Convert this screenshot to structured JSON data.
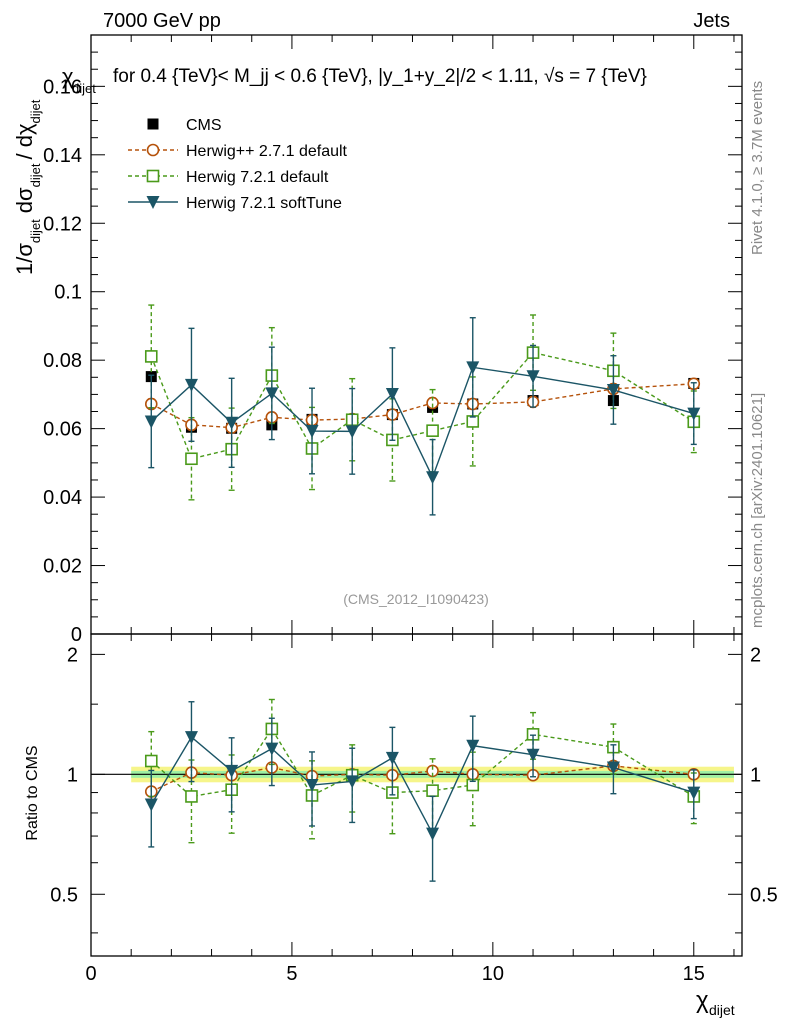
{
  "header": {
    "left": "7000 GeV pp",
    "right": "Jets",
    "side_right": "Rivet 4.1.0, ≥ 3.7M events",
    "side_right2": "mcplots.cern.ch [arXiv:2401.10621]"
  },
  "chart_data": {
    "type": "scatter",
    "title": "for 0.4 {TeV}< M_jj < 0.6 {TeV}, |y_1+y_2|/2 < 1.11, √s = 7 {TeV}",
    "title_prefix": "χ",
    "title_prefix_sub": "dijet",
    "watermark": "(CMS_2012_I1090423)",
    "xlabel": "χ",
    "xlabel_sub": "dijet",
    "ylabel_parts": [
      "1/σ",
      "dijet",
      "dσ",
      "dijet",
      "/ dχ",
      "dijet"
    ],
    "ratio_ylabel": "Ratio to CMS",
    "xlim": [
      0,
      16.2
    ],
    "ylim": [
      0,
      0.175
    ],
    "ratio_ylim": [
      0.35,
      2.25
    ],
    "x_ticks": [
      0,
      5,
      10,
      15
    ],
    "x_tick_labels": [
      "0",
      "5",
      "10",
      "15"
    ],
    "y_ticks": [
      0,
      0.02,
      0.04,
      0.06,
      0.08,
      0.1,
      0.12,
      0.14,
      0.16
    ],
    "y_tick_labels": [
      "0",
      "0.02",
      "0.04",
      "0.06",
      "0.08",
      "0.1",
      "0.12",
      "0.14",
      "0.16"
    ],
    "ratio_ticks": [
      0.5,
      1,
      2
    ],
    "ratio_tick_labels": [
      "0.5",
      "1",
      "2"
    ],
    "x_edges": [
      1,
      2,
      3,
      4,
      5,
      6,
      7,
      8,
      9,
      10,
      12,
      14,
      16
    ],
    "x": [
      1.5,
      2.5,
      3.5,
      4.5,
      5.5,
      6.5,
      7.5,
      8.5,
      9.5,
      11,
      13,
      15
    ],
    "band_inner": 0.02,
    "band_outer": 0.045,
    "series": [
      {
        "name": "CMS",
        "marker": "square-filled",
        "color": "#000000",
        "line": "none",
        "values": [
          0.0752,
          0.0604,
          0.0601,
          0.0611,
          0.0627,
          0.0622,
          0.0641,
          0.0662,
          0.0672,
          0.0682,
          0.0682,
          0.0732
        ],
        "errors": [
          0.001,
          0.001,
          0.001,
          0.001,
          0.001,
          0.001,
          0.001,
          0.001,
          0.001,
          0.001,
          0.001,
          0.001
        ]
      },
      {
        "name": "Herwig++ 2.7.1 default",
        "marker": "circle-open",
        "color": "#b5520b",
        "line": "dashed",
        "values": [
          0.0672,
          0.0611,
          0.0603,
          0.0633,
          0.0625,
          0.0628,
          0.0641,
          0.0675,
          0.0672,
          0.0678,
          0.0716,
          0.0731
        ],
        "errors": [
          0.0015,
          0.0015,
          0.0015,
          0.0015,
          0.0015,
          0.0015,
          0.0015,
          0.0015,
          0.0015,
          0.0015,
          0.0015,
          0.0015
        ],
        "ratio": [
          0.905,
          1.01,
          0.995,
          1.04,
          0.99,
          1.0,
          0.995,
          1.02,
          1.0,
          0.995,
          1.05,
          1.0
        ]
      },
      {
        "name": "Herwig 7.2.1 default",
        "marker": "square-open",
        "color": "#4a9a1a",
        "line": "dashed",
        "values": [
          0.0811,
          0.0512,
          0.054,
          0.0755,
          0.0542,
          0.0626,
          0.0567,
          0.0594,
          0.0621,
          0.0822,
          0.0769,
          0.062
        ],
        "errors": [
          0.015,
          0.012,
          0.012,
          0.014,
          0.012,
          0.012,
          0.012,
          0.012,
          0.013,
          0.011,
          0.011,
          0.009
        ],
        "ratio": [
          1.08,
          0.88,
          0.915,
          1.3,
          0.885,
          0.995,
          0.9,
          0.91,
          0.94,
          1.26,
          1.17,
          0.88
        ]
      },
      {
        "name": "Herwig 7.2.1 softTune",
        "marker": "triangle-down-filled",
        "color": "#1b5566",
        "line": "solid",
        "values": [
          0.0621,
          0.0728,
          0.0617,
          0.0703,
          0.0593,
          0.0592,
          0.0701,
          0.0458,
          0.0779,
          0.0753,
          0.0713,
          0.0644
        ],
        "errors": [
          0.0135,
          0.0165,
          0.013,
          0.0135,
          0.0125,
          0.0125,
          0.0135,
          0.011,
          0.0145,
          0.009,
          0.01,
          0.009
        ],
        "ratio": [
          0.84,
          1.24,
          1.02,
          1.16,
          0.94,
          0.96,
          1.1,
          0.71,
          1.18,
          1.12,
          1.04,
          0.9
        ]
      }
    ]
  }
}
